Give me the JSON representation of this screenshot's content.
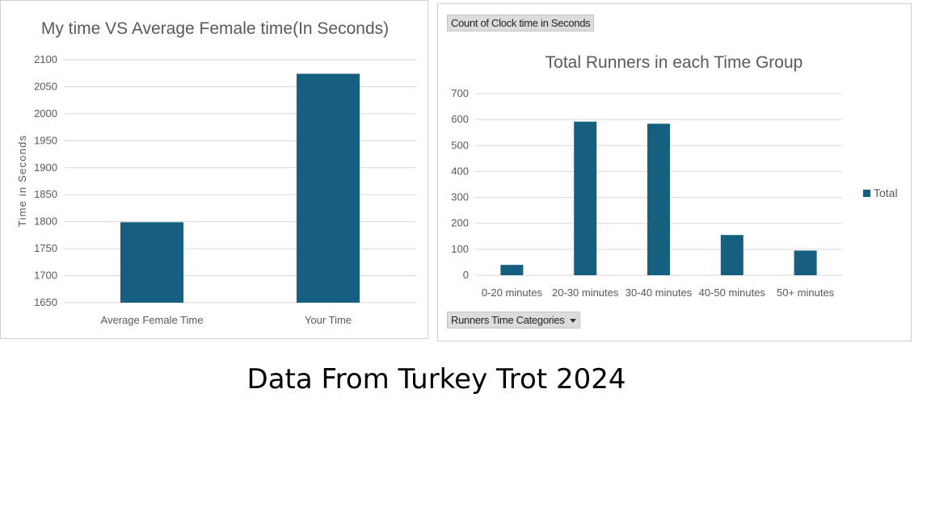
{
  "colors": {
    "bar": "#175f80",
    "grid": "#d9d9d9",
    "axis_text": "#595959"
  },
  "pivot": {
    "value_chip": "Count of Clock time in Seconds",
    "filter_chip": "Runners Time Categories",
    "filter_icon": "dropdown-arrow-icon"
  },
  "caption": "Data From Turkey Trot 2024",
  "chart_data": [
    {
      "type": "bar",
      "title": "My time VS Average Female time(In Seconds)",
      "xlabel": "",
      "ylabel": "Time in Seconds",
      "categories": [
        "Average Female Time",
        "Your Time"
      ],
      "values": [
        1799,
        2074
      ],
      "ylim": [
        1650,
        2100
      ],
      "yticks": [
        1650,
        1700,
        1750,
        1800,
        1850,
        1900,
        1950,
        2000,
        2050,
        2100
      ],
      "grid": true,
      "legend": "none"
    },
    {
      "type": "bar",
      "title": "Total Runners in each Time Group",
      "xlabel": "",
      "ylabel": "",
      "categories": [
        "0-20 minutes",
        "20-30 minutes",
        "30-40 minutes",
        "40-50 minutes",
        "50+ minutes"
      ],
      "series": [
        {
          "name": "Total",
          "values": [
            40,
            592,
            584,
            155,
            95
          ]
        }
      ],
      "ylim": [
        0,
        700
      ],
      "yticks": [
        0,
        100,
        200,
        300,
        400,
        500,
        600,
        700
      ],
      "grid": true,
      "legend": "right"
    }
  ]
}
